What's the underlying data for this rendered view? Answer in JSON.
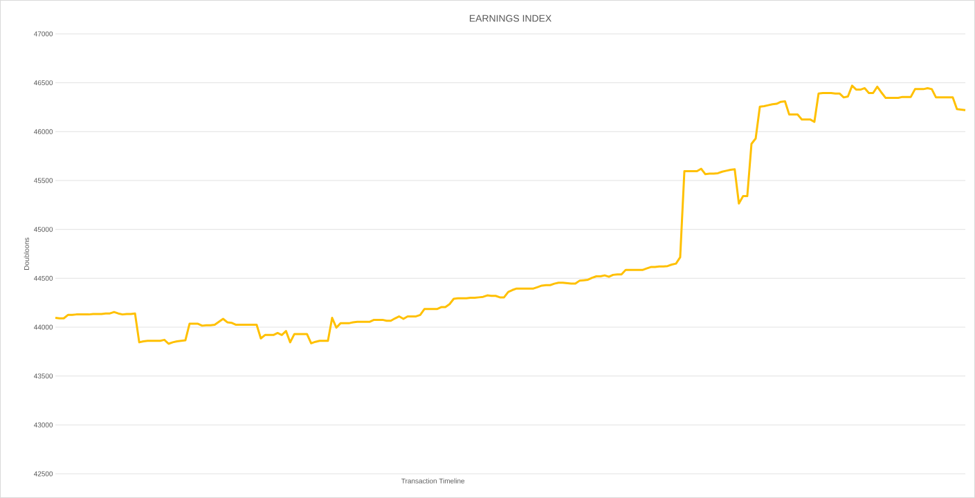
{
  "chart_data": {
    "type": "line",
    "title": "EARNINGS INDEX",
    "xlabel": "Transaction Timeline",
    "ylabel": "Doubloons",
    "categories": [
      null,
      null,
      null,
      null,
      null,
      null,
      null,
      null,
      null,
      null,
      null,
      null,
      null,
      null,
      null,
      null,
      null,
      null,
      null,
      null,
      null,
      null,
      null,
      null,
      null,
      null,
      null,
      null,
      null,
      null,
      null,
      null,
      null,
      null,
      null,
      null,
      null,
      null,
      null,
      null,
      null,
      null,
      null,
      null,
      null,
      null,
      null,
      null,
      null,
      null,
      null,
      null,
      null,
      null,
      null,
      null,
      null,
      null,
      null,
      null,
      null,
      null,
      null,
      null,
      null,
      null,
      null,
      null,
      null,
      null,
      null,
      null,
      null,
      null,
      null,
      null,
      null,
      null,
      null,
      null,
      null,
      null,
      null,
      null,
      null,
      null,
      null,
      null,
      null,
      null,
      null,
      null,
      null,
      null,
      null,
      null,
      null,
      null,
      null,
      null,
      null,
      null,
      null,
      null,
      null,
      null,
      null,
      null,
      null,
      null,
      null,
      null,
      null,
      null,
      null,
      null,
      null,
      null,
      null,
      null,
      null,
      null,
      null,
      null,
      null,
      null,
      null,
      null,
      null,
      null,
      null,
      null,
      null,
      null,
      null,
      null,
      null,
      null,
      null,
      null,
      null,
      null,
      null,
      null,
      null,
      null,
      null,
      null,
      null,
      null,
      null,
      null,
      null,
      null,
      null,
      null,
      null,
      null,
      null,
      null,
      null,
      null,
      null,
      null,
      null,
      null,
      null,
      null,
      null,
      null,
      null,
      null,
      null,
      null,
      null,
      null,
      null,
      null,
      null,
      null,
      null,
      null,
      null,
      null,
      null,
      null,
      null,
      null,
      null,
      null,
      null,
      null,
      null,
      null,
      null,
      null,
      null,
      null,
      null,
      null,
      null,
      null,
      null,
      null,
      null,
      null,
      null,
      null,
      null,
      null,
      null,
      null,
      null,
      null,
      null,
      null,
      null,
      null
    ],
    "values": [
      44095,
      44090,
      44090,
      44125,
      44125,
      44130,
      44130,
      44130,
      44130,
      44135,
      44135,
      44135,
      44140,
      44140,
      44155,
      44140,
      44130,
      44135,
      44135,
      44140,
      43845,
      43855,
      43860,
      43860,
      43860,
      43860,
      43870,
      43830,
      43845,
      43855,
      43860,
      43865,
      44035,
      44035,
      44035,
      44015,
      44020,
      44020,
      44025,
      44055,
      44085,
      44050,
      44045,
      44025,
      44025,
      44025,
      44025,
      44025,
      44025,
      43885,
      43920,
      43920,
      43920,
      43940,
      43920,
      43960,
      43845,
      43930,
      43930,
      43930,
      43930,
      43835,
      43850,
      43860,
      43860,
      43860,
      44095,
      43995,
      44040,
      44040,
      44040,
      44050,
      44055,
      44055,
      44055,
      44055,
      44075,
      44075,
      44075,
      44065,
      44065,
      44090,
      44110,
      44085,
      44110,
      44110,
      44110,
      44125,
      44185,
      44185,
      44185,
      44185,
      44205,
      44205,
      44235,
      44290,
      44295,
      44295,
      44295,
      44300,
      44300,
      44305,
      44310,
      44325,
      44320,
      44320,
      44305,
      44305,
      44360,
      44380,
      44395,
      44395,
      44395,
      44395,
      44395,
      44410,
      44425,
      44430,
      44430,
      44445,
      44455,
      44455,
      44450,
      44445,
      44445,
      44475,
      44480,
      44485,
      44505,
      44520,
      44520,
      44530,
      44515,
      44535,
      44540,
      44540,
      44585,
      44585,
      44585,
      44585,
      44585,
      44600,
      44615,
      44615,
      44620,
      44620,
      44625,
      44640,
      44650,
      44715,
      45595,
      45595,
      45595,
      45595,
      45620,
      45565,
      45570,
      45570,
      45575,
      45590,
      45600,
      45610,
      45615,
      45265,
      45340,
      45340,
      45875,
      45930,
      46255,
      46260,
      46270,
      46280,
      46285,
      46305,
      46310,
      46175,
      46175,
      46175,
      46125,
      46125,
      46125,
      46100,
      46390,
      46395,
      46395,
      46395,
      46390,
      46390,
      46350,
      46360,
      46470,
      46430,
      46430,
      46445,
      46395,
      46395,
      46460,
      46400,
      46345,
      46345,
      46345,
      46345,
      46355,
      46355,
      46355,
      46435,
      46435,
      46435,
      46445,
      46435,
      46350,
      46350,
      46350,
      46350,
      46350,
      46230,
      46225,
      46220
    ],
    "color": "#ffc000",
    "ylim": [
      42500,
      47000
    ],
    "yticks": [
      42500,
      43000,
      43500,
      44000,
      44500,
      45000,
      45500,
      46000,
      46500,
      47000
    ],
    "grid": "y",
    "tick_labels": "y"
  }
}
